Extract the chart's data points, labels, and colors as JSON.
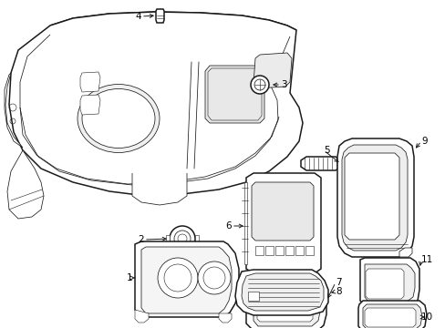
{
  "bg_color": "#ffffff",
  "line_color": "#1a1a1a",
  "label_color": "#000000",
  "fig_width": 4.89,
  "fig_height": 3.6,
  "dpi": 100,
  "lw_main": 1.1,
  "lw_thin": 0.55,
  "lw_detail": 0.4,
  "font_size": 7.5
}
